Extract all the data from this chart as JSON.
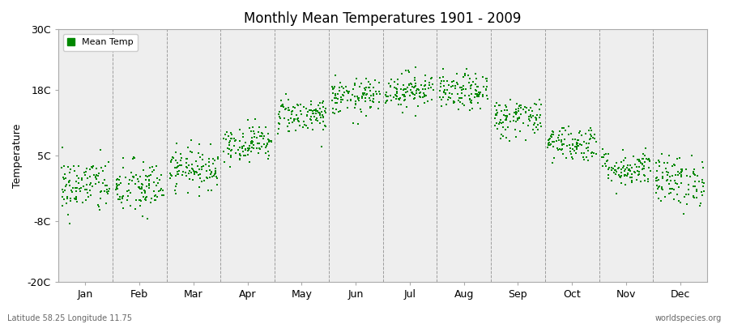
{
  "title": "Monthly Mean Temperatures 1901 - 2009",
  "ylabel": "Temperature",
  "yticks": [
    -20,
    -8,
    5,
    18,
    30
  ],
  "ytick_labels": [
    "-20C",
    "-8C",
    "5C",
    "18C",
    "30C"
  ],
  "ylim": [
    -20,
    30
  ],
  "xlim": [
    0,
    12
  ],
  "months": [
    "Jan",
    "Feb",
    "Mar",
    "Apr",
    "May",
    "Jun",
    "Jul",
    "Aug",
    "Sep",
    "Oct",
    "Nov",
    "Dec"
  ],
  "dot_color": "#008800",
  "bg_color": "#ffffff",
  "plot_bg_color": "#eeeeee",
  "legend_label": "Mean Temp",
  "subtitle_left": "Latitude 58.25 Longitude 11.75",
  "subtitle_right": "worldspecies.org",
  "n_years": 109,
  "seed": 42,
  "monthly_means": [
    -1.0,
    -1.5,
    2.5,
    7.5,
    13.0,
    16.5,
    18.0,
    17.5,
    12.5,
    7.5,
    2.5,
    0.0
  ],
  "monthly_stds": [
    2.8,
    2.8,
    2.0,
    1.8,
    1.8,
    1.8,
    1.8,
    1.8,
    2.0,
    1.8,
    1.8,
    2.5
  ]
}
